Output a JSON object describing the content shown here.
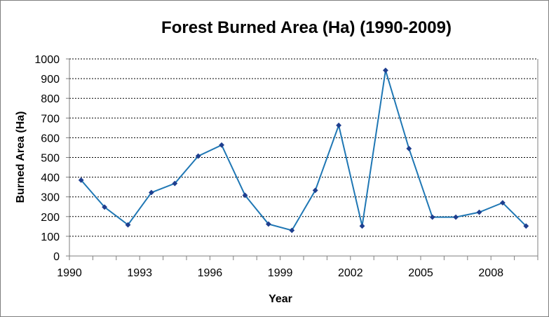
{
  "chart_data": {
    "type": "line",
    "title": "Forest Burned Area (Ha) (1990-2009)",
    "xlabel": "Year",
    "ylabel": "Burned Area (Ha)",
    "ylim": [
      0,
      1000
    ],
    "yticks": [
      0,
      100,
      200,
      300,
      400,
      500,
      600,
      700,
      800,
      900,
      1000
    ],
    "xticks": [
      1990,
      1993,
      1996,
      1999,
      2002,
      2005,
      2008
    ],
    "xlim": [
      1990,
      2009
    ],
    "grid": "horizontal dashed",
    "legend": "none",
    "series": [
      {
        "color": "#1f77b4",
        "marker_color": "#1f3f8f",
        "x": [
          1990,
          1991,
          1992,
          1993,
          1994,
          1995,
          1996,
          1997,
          1998,
          1999,
          2000,
          2001,
          2002,
          2003,
          2004,
          2005,
          2006,
          2007,
          2008,
          2009
        ],
        "values": [
          385,
          248,
          158,
          322,
          368,
          507,
          563,
          308,
          162,
          130,
          333,
          663,
          152,
          942,
          545,
          197,
          197,
          222,
          270,
          152
        ]
      }
    ]
  }
}
